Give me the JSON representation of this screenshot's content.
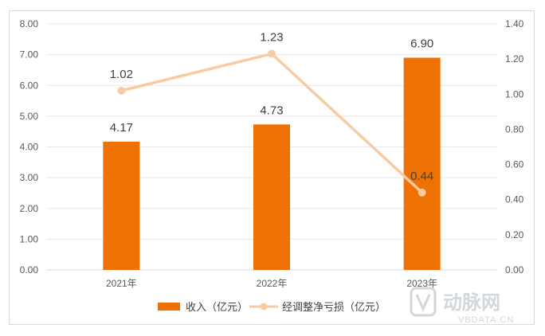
{
  "chart_data": {
    "type": "bar",
    "categories": [
      "2021年",
      "2022年",
      "2023年"
    ],
    "series": [
      {
        "name": "收入（亿元）",
        "type": "bar",
        "axis": "left",
        "values": [
          4.17,
          4.73,
          6.9
        ],
        "labels": [
          "4.17",
          "4.73",
          "6.90"
        ],
        "color": "#ee7203"
      },
      {
        "name": "经调整净亏损（亿元）",
        "type": "line",
        "axis": "right",
        "values": [
          1.02,
          1.23,
          0.44
        ],
        "labels": [
          "1.02",
          "1.23",
          "0.44"
        ],
        "color": "#f8cba4"
      }
    ],
    "y_left": {
      "ylim": [
        0,
        8
      ],
      "ticks": [
        "0.00",
        "1.00",
        "2.00",
        "3.00",
        "4.00",
        "5.00",
        "6.00",
        "7.00",
        "8.00"
      ]
    },
    "y_right": {
      "ylim": [
        0,
        1.4
      ],
      "ticks": [
        "0.00",
        "0.20",
        "0.40",
        "0.60",
        "0.80",
        "1.00",
        "1.20",
        "1.40"
      ]
    },
    "grid": true,
    "legend": "bottom",
    "title": "",
    "xlabel": "",
    "ylabel": ""
  },
  "watermark": {
    "name": "动脉网",
    "domain": "VBDATA.CN"
  }
}
